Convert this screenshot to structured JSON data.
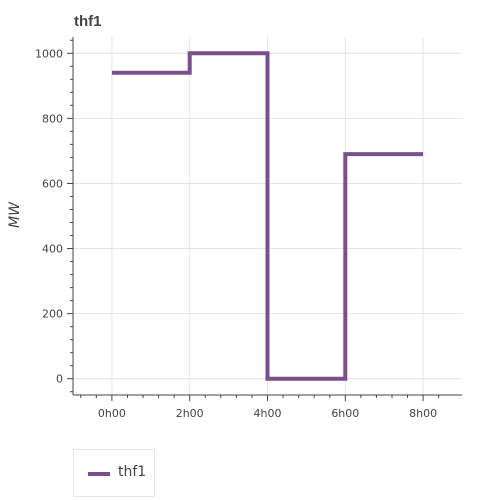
{
  "chart_data": {
    "type": "line",
    "step": true,
    "title": "thf1",
    "xlabel": "",
    "ylabel": "MW",
    "x_tick_labels": [
      "0h00",
      "2h00",
      "4h00",
      "6h00",
      "8h00"
    ],
    "y_tick_labels": [
      "0",
      "200",
      "400",
      "600",
      "800",
      "1000"
    ],
    "xlim": [
      -1,
      9
    ],
    "ylim": [
      -50,
      1050
    ],
    "grid": true,
    "legend_position": "bottom-left",
    "series": [
      {
        "name": "thf1",
        "color": "#7b4f8c",
        "x": [
          0,
          2,
          4,
          6,
          8
        ],
        "y": [
          940,
          1000,
          0,
          690,
          690
        ]
      }
    ]
  },
  "legend": {
    "label": "thf1",
    "color": "#7b4f8c"
  }
}
